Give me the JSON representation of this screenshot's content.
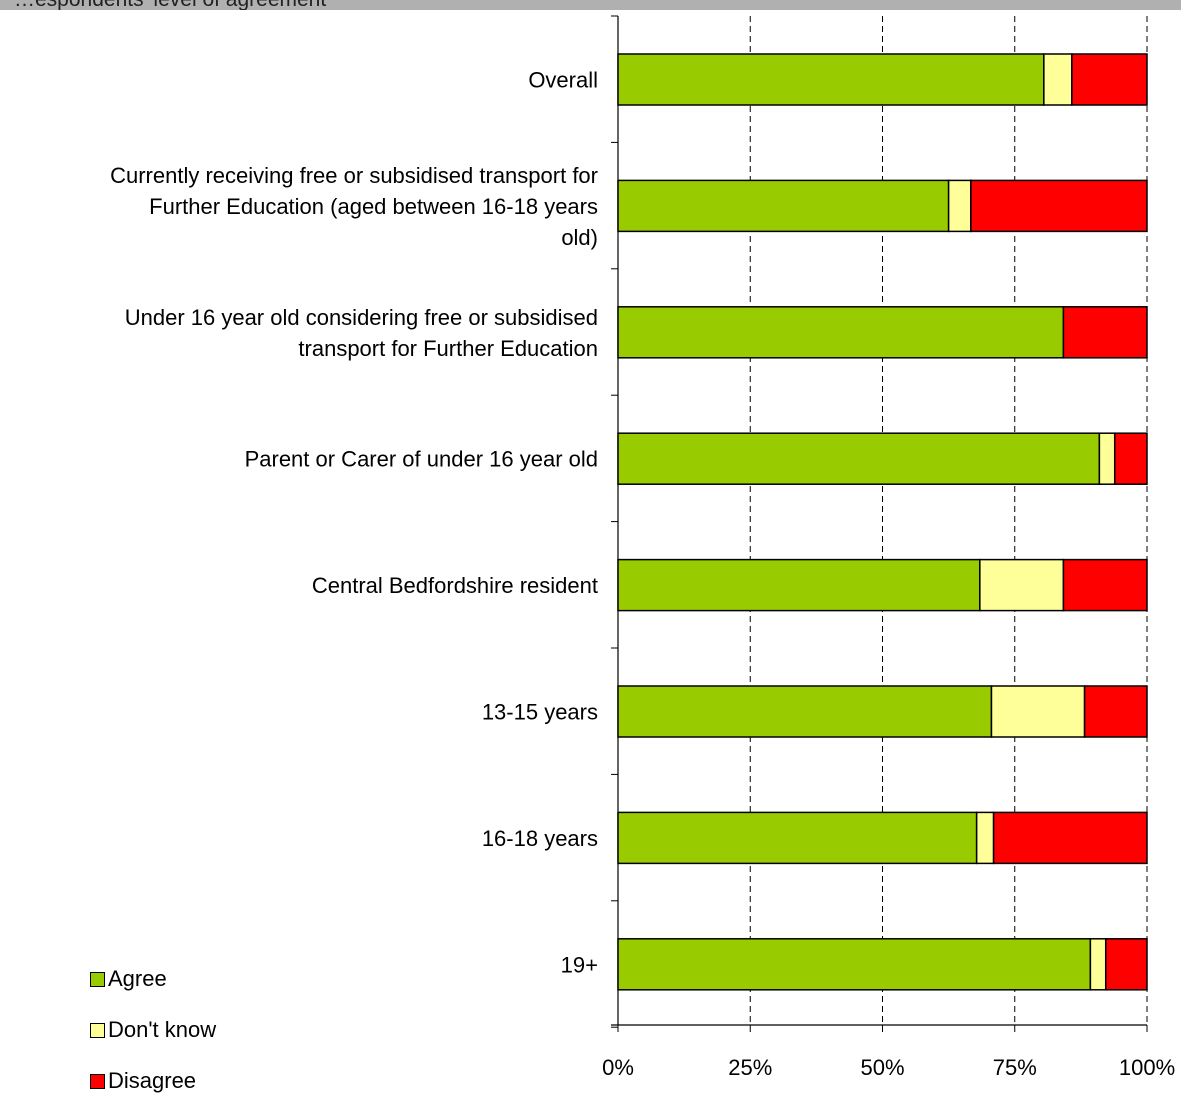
{
  "header": {
    "title": "…espondents' level of agreement"
  },
  "chart_data": {
    "type": "bar",
    "orientation": "horizontal",
    "stacked": true,
    "percent": true,
    "categories": [
      [
        "Overall"
      ],
      [
        "Currently receiving free or subsidised transport for",
        "Further Education (aged between 16-18 years",
        "old)"
      ],
      [
        "Under 16 year old considering free or subsidised",
        "transport for Further Education"
      ],
      [
        "Parent or Carer of under 16 year old"
      ],
      [
        "Central Bedfordshire resident"
      ],
      [
        "13-15 years"
      ],
      [
        "16-18 years"
      ],
      [
        "19+"
      ]
    ],
    "series": [
      {
        "name": "Agree",
        "color": "#99cc00",
        "values": [
          80.5,
          62.5,
          84.2,
          91.0,
          68.4,
          70.6,
          67.8,
          89.3
        ]
      },
      {
        "name": "Don't know",
        "color": "#ffff99",
        "values": [
          5.3,
          4.2,
          0.0,
          2.9,
          15.8,
          17.6,
          3.2,
          2.9
        ]
      },
      {
        "name": "Disagree",
        "color": "#ff0000",
        "values": [
          14.2,
          33.3,
          15.8,
          6.1,
          15.8,
          11.8,
          29.0,
          7.8
        ]
      }
    ],
    "xlim": [
      0,
      100
    ],
    "xticks": [
      "0%",
      "25%",
      "50%",
      "75%",
      "100%"
    ],
    "grid": "vertical-dashed",
    "legend_position": "bottom-left"
  }
}
